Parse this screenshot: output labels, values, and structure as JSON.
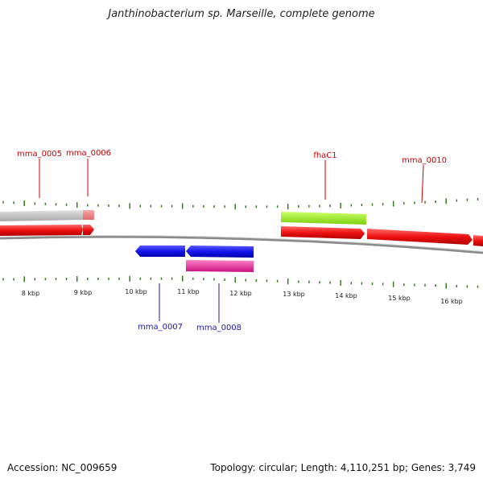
{
  "title": "Janthinobacterium sp. Marseille, complete genome",
  "footer": {
    "accession": "Accession: NC_009659",
    "summary": "Topology: circular; Length: 4,110,251 bp; Genes: 3,749"
  },
  "colors": {
    "backbone": "#8a8a8a",
    "tick": "#2f7d1a",
    "label_top": "#cc0000",
    "label_bottom": "#1a1aaa",
    "gene_red": "#ee1111",
    "gene_grey": "#bdbdbd",
    "gene_pink_light": "#f08080",
    "gene_lime": "#99ee22",
    "gene_blue": "#1414ee",
    "gene_magenta": "#ee2aa0"
  },
  "scale": {
    "labels": [
      "8 kbp",
      "9 kbp",
      "10 kbp",
      "11 kbp",
      "12 kbp",
      "13 kbp",
      "14 kbp",
      "15 kbp",
      "16 kbp"
    ]
  },
  "genes": [
    {
      "id": "mma_0005",
      "label": "mma_0005",
      "strand": "+"
    },
    {
      "id": "mma_0006",
      "label": "mma_0006",
      "strand": "+"
    },
    {
      "id": "mma_0007",
      "label": "mma_0007",
      "strand": "-"
    },
    {
      "id": "mma_0008",
      "label": "mma_0008",
      "strand": "-"
    },
    {
      "id": "fhaC1",
      "label": "fhaC1",
      "strand": "+"
    },
    {
      "id": "mma_0010",
      "label": "mma_0010",
      "strand": "+"
    }
  ]
}
